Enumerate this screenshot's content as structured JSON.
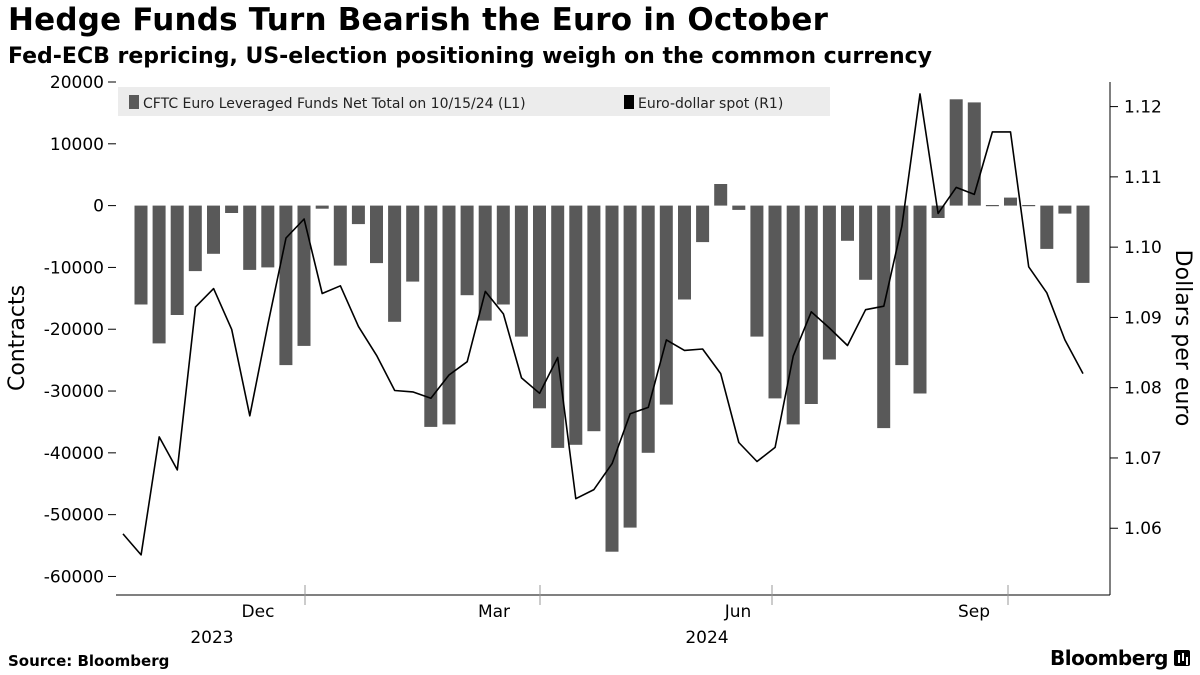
{
  "header": {
    "title": "Hedge Funds Turn Bearish the Euro in October",
    "subtitle": "Fed-ECB repricing, US-election positioning weigh on the common currency"
  },
  "footer": {
    "source": "Source: Bloomberg",
    "brand": "Bloomberg"
  },
  "chart_data": {
    "type": "bar",
    "x_axis": {
      "month_labels": [
        "Dec",
        "Mar",
        "Jun",
        "Sep"
      ],
      "year_labels": [
        "2023",
        "2024"
      ]
    },
    "left_axis": {
      "label": "Contracts",
      "range": [
        -63000,
        20000
      ],
      "ticks": [
        20000,
        10000,
        0,
        -10000,
        -20000,
        -30000,
        -40000,
        -50000,
        -60000
      ]
    },
    "right_axis": {
      "label": "Dollars per euro",
      "range": [
        1.0505,
        1.1235
      ],
      "ticks": [
        "1.12",
        "1.11",
        "1.10",
        "1.09",
        "1.08",
        "1.07",
        "1.06"
      ]
    },
    "series": [
      {
        "name": "CFTC Euro Leveraged Funds Net Total on 10/15/24 (L1)",
        "type": "bar",
        "axis": "left",
        "color": "#595959",
        "values": [
          -16000,
          -22300,
          -17700,
          -10600,
          -7800,
          -1200,
          -10400,
          -10000,
          -25800,
          -22700,
          -500,
          -9700,
          -3000,
          -9300,
          -18800,
          -12300,
          -35800,
          -35400,
          -14500,
          -18600,
          -16000,
          -21200,
          -32800,
          -39200,
          -38700,
          -36500,
          -56000,
          -52100,
          -40000,
          -32200,
          -15200,
          -5900,
          3500,
          -700,
          -21200,
          -31200,
          -35400,
          -32100,
          -24900,
          -5700,
          -12000,
          -36000,
          -25800,
          -30400,
          -2000,
          17200,
          16700,
          0,
          1300,
          0,
          -7000,
          -1300,
          -12500
        ]
      },
      {
        "name": "Euro-dollar spot (R1)",
        "type": "line",
        "axis": "right",
        "color": "#000000",
        "values": [
          1.0592,
          1.0562,
          1.073,
          1.0683,
          1.0915,
          1.0941,
          1.0883,
          1.076,
          1.089,
          1.1013,
          1.104,
          1.0934,
          1.0945,
          1.0887,
          1.0846,
          1.0796,
          1.0794,
          1.0785,
          1.0818,
          1.0837,
          1.0937,
          1.0905,
          1.0814,
          1.0792,
          1.0843,
          1.0642,
          1.0655,
          1.0692,
          1.0763,
          1.0772,
          1.0868,
          1.0853,
          1.0855,
          1.082,
          1.0722,
          1.0695,
          1.0715,
          1.0845,
          1.0908,
          1.0885,
          1.086,
          1.0911,
          1.0916,
          1.103,
          1.1218,
          1.1048,
          1.1085,
          1.1075,
          1.1164,
          1.1164,
          1.0972,
          1.0935,
          1.0868,
          1.082
        ]
      }
    ],
    "legend_position": "top-left",
    "grid": false
  }
}
